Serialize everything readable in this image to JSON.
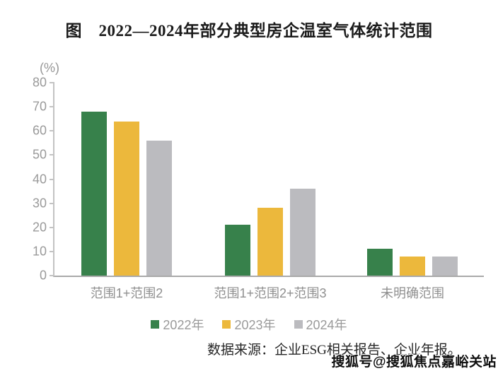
{
  "figure": {
    "title": "图　2022—2024年部分典型房企温室气体统计范围",
    "source_note": "数据来源：企业ESG相关报告、企业年报。",
    "watermark": "搜狐号@搜狐焦点嘉峪关站"
  },
  "chart_data": {
    "type": "bar",
    "title": "图 2022—2024年部分典型房企温室气体统计范围",
    "xlabel": "",
    "ylabel": "(%)",
    "ylim": [
      0,
      80
    ],
    "ytick_step": 10,
    "grid": false,
    "legend_position": "bottom",
    "categories": [
      "范围1+范围2",
      "范围1+范围2+范围3",
      "未明确范围"
    ],
    "series": [
      {
        "name": "2022年",
        "color": "#37814B",
        "values": [
          68,
          21,
          11
        ]
      },
      {
        "name": "2023年",
        "color": "#ECB83C",
        "values": [
          64,
          28,
          8
        ]
      },
      {
        "name": "2024年",
        "color": "#BBBBBF",
        "values": [
          56,
          36,
          8
        ]
      }
    ]
  },
  "colors": {
    "y_axis_line": "#C3C3C3",
    "x_axis_line": "#A9A9A9",
    "tick_label": "#9A9A9A",
    "category_label": "#8F8F8F",
    "legend_text": "#9A9A9A",
    "title_text": "#1B1B1B",
    "source_text": "#262626",
    "watermark_text": "#0D0D0D"
  }
}
